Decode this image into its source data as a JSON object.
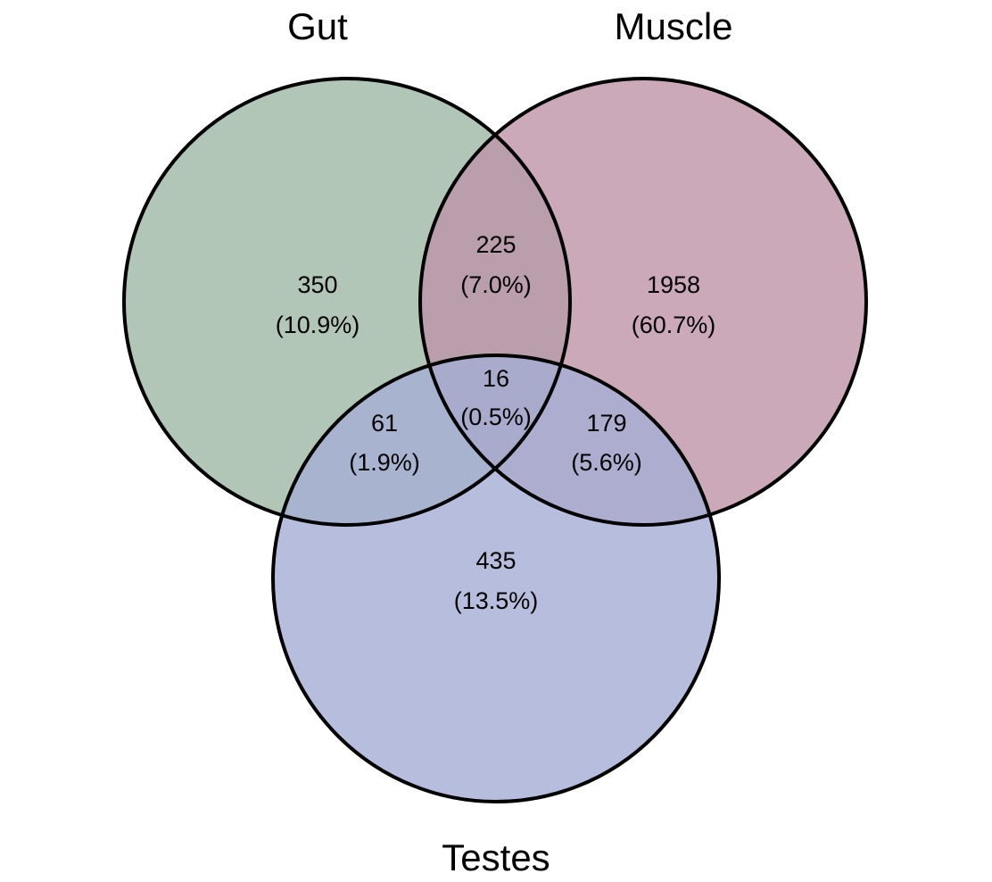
{
  "diagram": {
    "type": "venn3",
    "sets": [
      {
        "id": "gut",
        "label": "Gut",
        "color": "#9db8a5"
      },
      {
        "id": "muscle",
        "label": "Muscle",
        "color": "#be93a8"
      },
      {
        "id": "testes",
        "label": "Testes",
        "color": "#a5aed5"
      }
    ],
    "regions": [
      {
        "id": "gut-only",
        "sets": [
          "Gut"
        ],
        "count": "350",
        "percent": "(10.9%)"
      },
      {
        "id": "muscle-only",
        "sets": [
          "Muscle"
        ],
        "count": "1958",
        "percent": "(60.7%)"
      },
      {
        "id": "testes-only",
        "sets": [
          "Testes"
        ],
        "count": "435",
        "percent": "(13.5%)"
      },
      {
        "id": "gut-muscle",
        "sets": [
          "Gut",
          "Muscle"
        ],
        "count": "225",
        "percent": "(7.0%)"
      },
      {
        "id": "gut-testes",
        "sets": [
          "Gut",
          "Testes"
        ],
        "count": "61",
        "percent": "(1.9%)"
      },
      {
        "id": "muscle-testes",
        "sets": [
          "Muscle",
          "Testes"
        ],
        "count": "179",
        "percent": "(5.6%)"
      },
      {
        "id": "all-three",
        "sets": [
          "Gut",
          "Muscle",
          "Testes"
        ],
        "count": "16",
        "percent": "(0.5%)"
      }
    ],
    "outline_color": "#000000"
  }
}
